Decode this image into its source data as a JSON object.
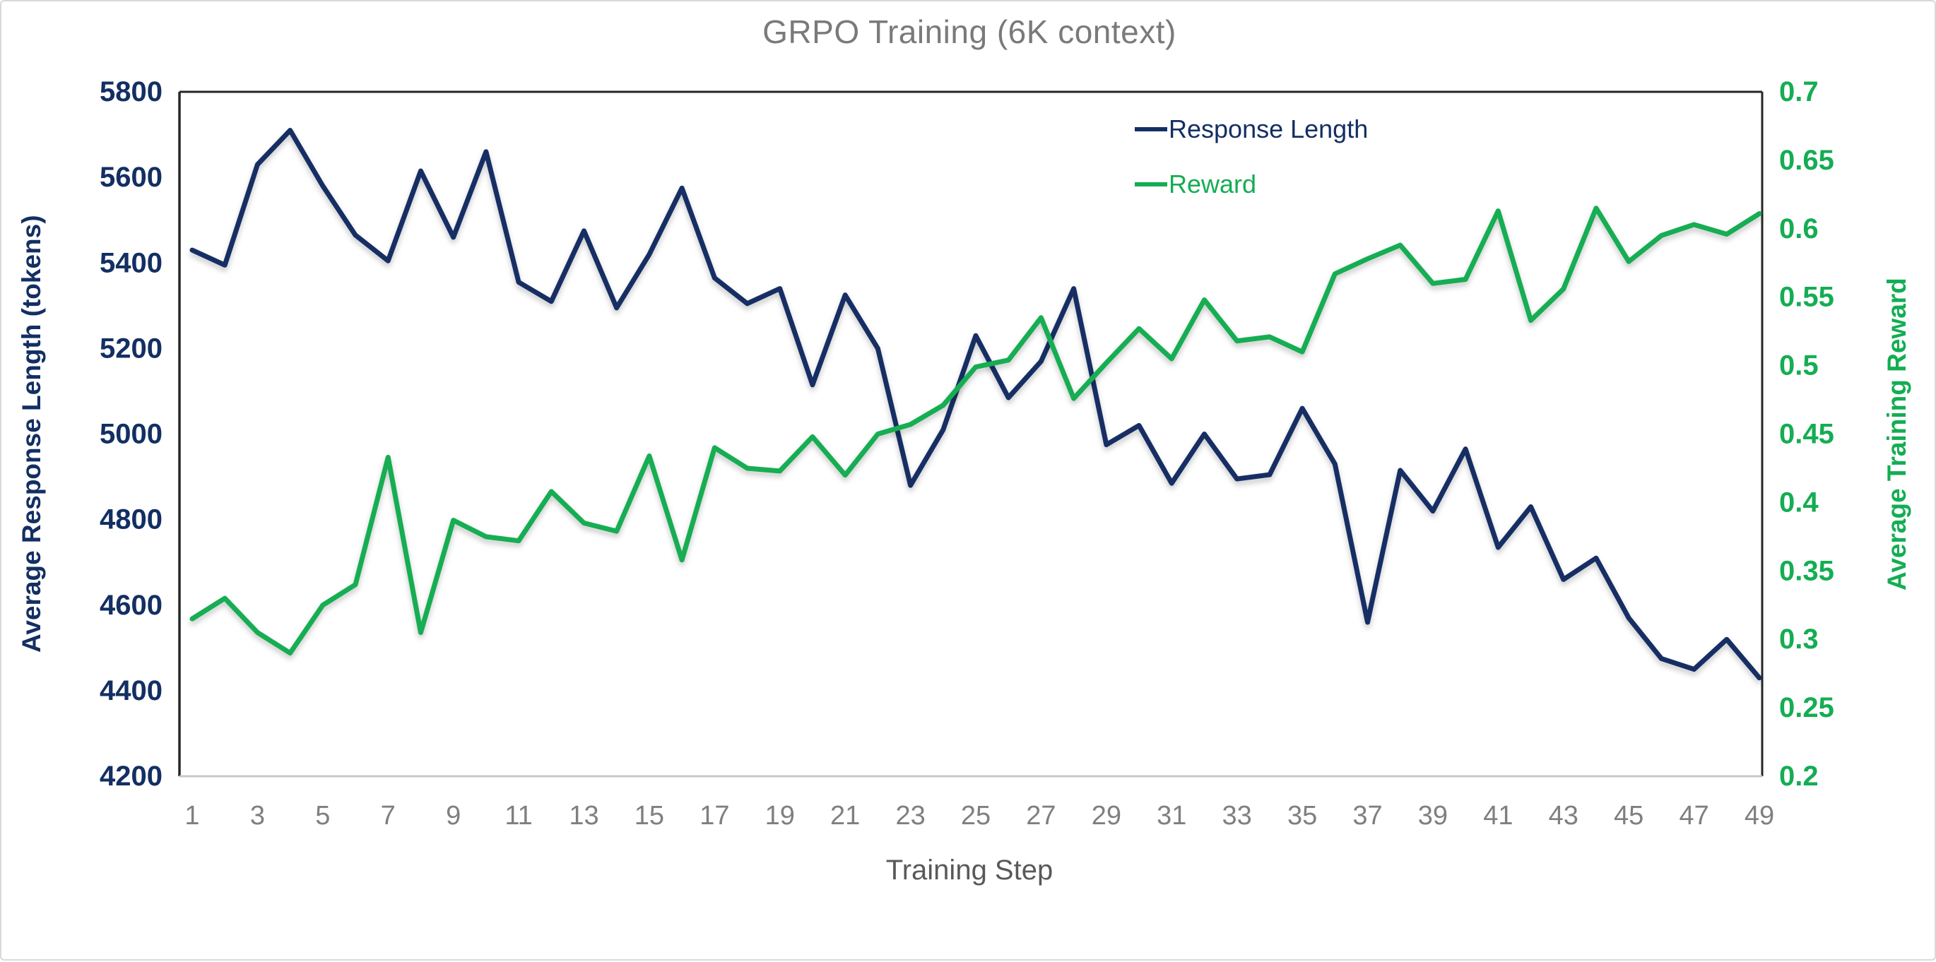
{
  "chart_data": {
    "type": "line",
    "title": "GRPO Training (6K context)",
    "xlabel": "Training Step",
    "ylabel_left": "Average Response Length (tokens)",
    "ylabel_right": "Average Training Reward",
    "x": [
      1,
      2,
      3,
      4,
      5,
      6,
      7,
      8,
      9,
      10,
      11,
      12,
      13,
      14,
      15,
      16,
      17,
      18,
      19,
      20,
      21,
      22,
      23,
      24,
      25,
      26,
      27,
      28,
      29,
      30,
      31,
      32,
      33,
      34,
      35,
      36,
      37,
      38,
      39,
      40,
      41,
      42,
      43,
      44,
      45,
      46,
      47,
      48,
      49
    ],
    "series": [
      {
        "name": "Response Length",
        "axis": "left",
        "color": "#132f63",
        "values": [
          5430,
          5395,
          5630,
          5710,
          5580,
          5465,
          5405,
          5615,
          5460,
          5660,
          5355,
          5310,
          5475,
          5295,
          5420,
          5575,
          5365,
          5305,
          5340,
          5115,
          5325,
          5200,
          4880,
          5010,
          5230,
          5085,
          5170,
          5340,
          4975,
          5020,
          4885,
          5000,
          4895,
          4905,
          5060,
          4930,
          4560,
          4915,
          4820,
          4965,
          4735,
          4830,
          4660,
          4710,
          4570,
          4475,
          4450,
          4520,
          4430
        ]
      },
      {
        "name": "Reward",
        "axis": "right",
        "color": "#14ad53",
        "values": [
          0.315,
          0.33,
          0.305,
          0.29,
          0.325,
          0.34,
          0.433,
          0.305,
          0.387,
          0.375,
          0.372,
          0.408,
          0.385,
          0.379,
          0.434,
          0.358,
          0.44,
          0.425,
          0.423,
          0.448,
          0.42,
          0.45,
          0.457,
          0.471,
          0.499,
          0.504,
          0.535,
          0.476,
          0.502,
          0.527,
          0.505,
          0.548,
          0.518,
          0.521,
          0.51,
          0.567,
          0.578,
          0.588,
          0.56,
          0.563,
          0.613,
          0.533,
          0.556,
          0.615,
          0.576,
          0.595,
          0.603,
          0.596,
          0.611
        ]
      }
    ],
    "ylim_left": [
      4200,
      5800
    ],
    "ylim_right": [
      0.2,
      0.7
    ],
    "yticks_left_values": [
      5800,
      5600,
      5400,
      5200,
      5000,
      4800,
      4600,
      4400,
      4200
    ],
    "yticks_left_labels": [
      "5800",
      "5600",
      "5400",
      "5200",
      "5000",
      "4800",
      "4600",
      "4400",
      "4200"
    ],
    "yticks_right_values": [
      0.7,
      0.65,
      0.6,
      0.55,
      0.5,
      0.45,
      0.4,
      0.35,
      0.3,
      0.25,
      0.2
    ],
    "yticks_right_labels": [
      "0.7",
      "0.65",
      "0.6",
      "0.55",
      "0.5",
      "0.45",
      "0.4",
      "0.35",
      "0.3",
      "0.25",
      "0.2"
    ],
    "xticks": [
      1,
      3,
      5,
      7,
      9,
      11,
      13,
      15,
      17,
      19,
      21,
      23,
      25,
      27,
      29,
      31,
      33,
      35,
      37,
      39,
      41,
      43,
      45,
      47,
      49
    ],
    "legend_position": "top-right-inside",
    "grid": false
  },
  "colors": {
    "response_length": "#132f63",
    "reward": "#14ad53",
    "title_gray": "#7a7a7a",
    "xtick_gray": "#7f7f7f",
    "xaxis_title_gray": "#595959",
    "frame_dark": "#262626",
    "frame_bottom_light": "#c8c8c8",
    "background": "#ffffff"
  }
}
